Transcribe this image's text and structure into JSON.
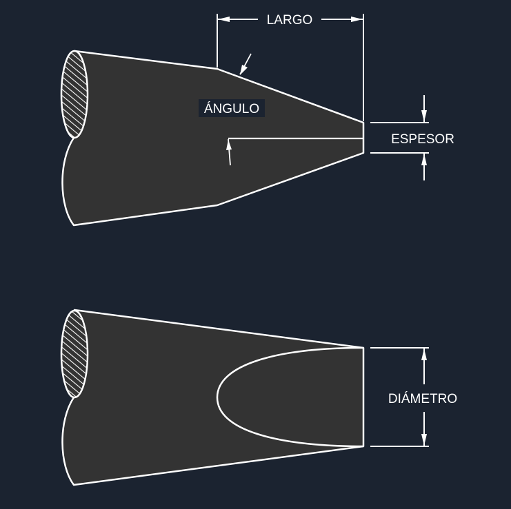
{
  "colors": {
    "background": "#1b2330",
    "fill": "#333333",
    "stroke": "#ffffff"
  },
  "labels": {
    "length": "LARGO",
    "angle": "ÁNGULO",
    "thickness": "ESPESOR",
    "diameter": "DIÁMETRO"
  }
}
